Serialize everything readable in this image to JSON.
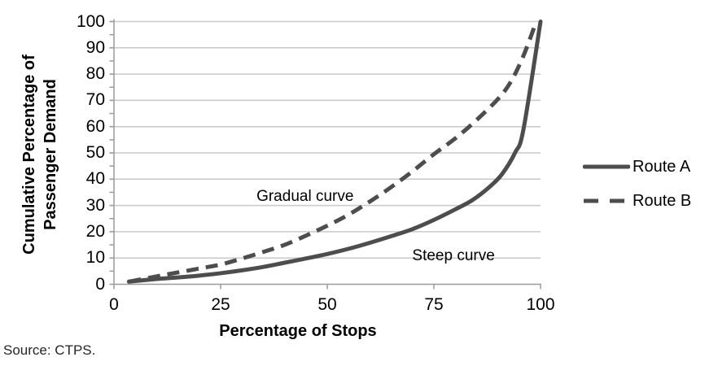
{
  "source_note": "Source: CTPS.",
  "legend": {
    "items": [
      {
        "label": "Route A",
        "style": "solid"
      },
      {
        "label": "Route B",
        "style": "dashed"
      }
    ]
  },
  "chart_data": {
    "type": "line",
    "title": "",
    "xlabel": "Percentage of Stops",
    "ylabel": "Cumulative Percentage of Passenger Demand",
    "ylabel_lines": [
      "Cumulative Percentage of",
      "Passenger Demand"
    ],
    "xlim": [
      0,
      100
    ],
    "ylim": [
      0,
      100
    ],
    "x_ticks": [
      0,
      25,
      50,
      75,
      100
    ],
    "y_ticks": [
      0,
      10,
      20,
      30,
      40,
      50,
      60,
      70,
      80,
      90,
      100
    ],
    "y_minor_tick_step": 5,
    "grid": "horizontal",
    "legend_position": "right",
    "series": [
      {
        "name": "Route A",
        "line_style": "solid",
        "color": "#4d4d4d",
        "points": [
          [
            3.5,
            1
          ],
          [
            10,
            2
          ],
          [
            15,
            2.6
          ],
          [
            20,
            3.3
          ],
          [
            25,
            4.2
          ],
          [
            30,
            5.3
          ],
          [
            35,
            6.6
          ],
          [
            40,
            8.2
          ],
          [
            45,
            9.8
          ],
          [
            50,
            11.5
          ],
          [
            55,
            13.5
          ],
          [
            60,
            15.8
          ],
          [
            65,
            18.3
          ],
          [
            70,
            21
          ],
          [
            75,
            24.5
          ],
          [
            80,
            28.5
          ],
          [
            84,
            32
          ],
          [
            88,
            37
          ],
          [
            91,
            42
          ],
          [
            94,
            50
          ],
          [
            96,
            59
          ],
          [
            100,
            100
          ]
        ]
      },
      {
        "name": "Route B",
        "line_style": "dashed",
        "color": "#4d4d4d",
        "points": [
          [
            3.5,
            1
          ],
          [
            10,
            3
          ],
          [
            15,
            4.5
          ],
          [
            20,
            6
          ],
          [
            25,
            7.5
          ],
          [
            30,
            9.8
          ],
          [
            35,
            12.3
          ],
          [
            40,
            15
          ],
          [
            45,
            18.5
          ],
          [
            50,
            22.3
          ],
          [
            55,
            26.5
          ],
          [
            60,
            31.5
          ],
          [
            65,
            37
          ],
          [
            70,
            43
          ],
          [
            75,
            49.5
          ],
          [
            80,
            55.5
          ],
          [
            85,
            62.5
          ],
          [
            90,
            70.5
          ],
          [
            93,
            77
          ],
          [
            96,
            87
          ],
          [
            99,
            100
          ]
        ]
      }
    ],
    "annotations": [
      {
        "text": "Gradual curve",
        "x": 44.8,
        "y": 33.3
      },
      {
        "text": "Steep curve",
        "x": 79.6,
        "y": 10.8
      }
    ],
    "colors": {
      "line": "#4d4d4d",
      "grid": "#c9c9c9",
      "axis": "#9a9a9a",
      "text": "#000000"
    }
  }
}
